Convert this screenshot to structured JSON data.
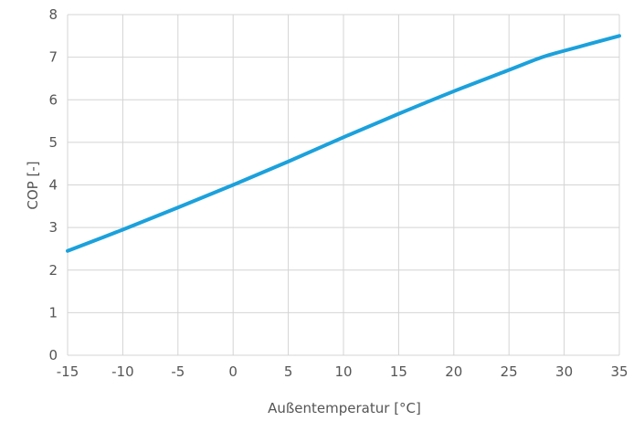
{
  "chart_data": {
    "type": "line",
    "title": "",
    "xlabel": "Außentemperatur [°C]",
    "ylabel": "COP [-]",
    "xlim": [
      -15,
      35
    ],
    "ylim": [
      0,
      8
    ],
    "x_ticks": [
      -15,
      -10,
      -5,
      0,
      5,
      10,
      15,
      20,
      25,
      30,
      35
    ],
    "y_ticks": [
      0,
      1,
      2,
      3,
      4,
      5,
      6,
      7,
      8
    ],
    "grid": true,
    "legend": "none",
    "series": [
      {
        "color": "#1ba1dc",
        "x": [
          -15,
          -10,
          -5,
          0,
          5,
          10,
          15,
          20,
          25,
          28,
          30,
          35
        ],
        "y": [
          2.45,
          2.95,
          3.47,
          4.0,
          4.55,
          5.12,
          5.67,
          6.2,
          6.7,
          7.0,
          7.15,
          7.5
        ]
      }
    ]
  }
}
